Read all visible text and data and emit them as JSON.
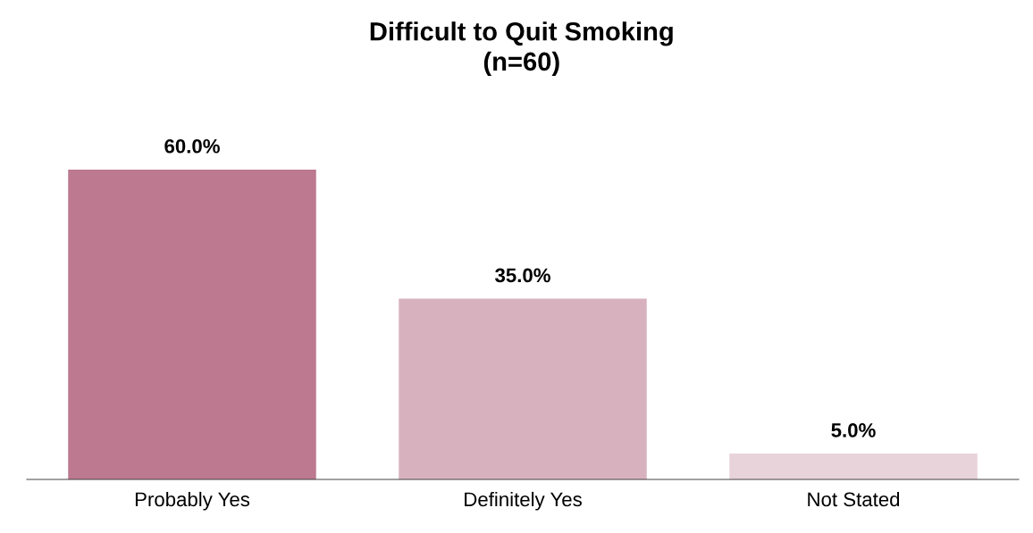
{
  "chart_data": {
    "type": "bar",
    "title": "Difficult to Quit Smoking\n(n=60)",
    "categories": [
      "Probably Yes",
      "Definitely Yes",
      "Not Stated"
    ],
    "values": [
      60,
      35,
      5
    ],
    "colors": [
      "#bc7990",
      "#d8b1bf",
      "#e8d3da"
    ],
    "value_labels": [
      "60.0%",
      "35.0%",
      "5.0%"
    ],
    "grid": false
  }
}
